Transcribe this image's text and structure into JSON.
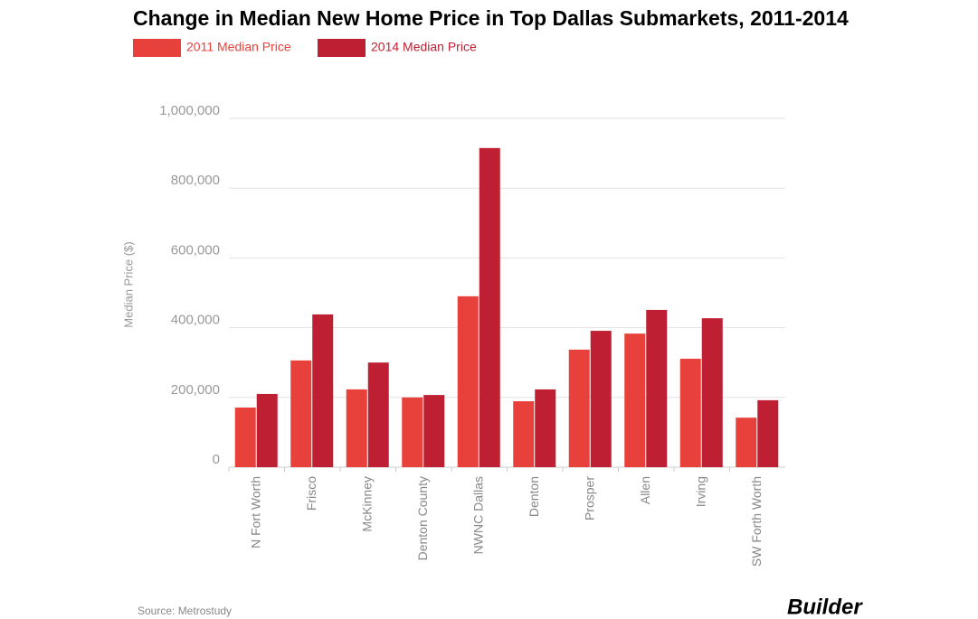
{
  "chart_data": {
    "type": "bar",
    "title": "Change in Median New Home Price in Top Dallas Submarkets, 2011-2014",
    "y_label": "Median Price ($)",
    "source": "Source: Metrostudy",
    "brand": "Builder",
    "categories": [
      "N Fort Worth",
      "Frisco",
      "McKinney",
      "Denton County",
      "NWNC Dallas",
      "Denton",
      "Prosper",
      "Allen",
      "Irving",
      "SW Forth Worth"
    ],
    "series": [
      {
        "name": "2011 Median Price",
        "color": "#e8403a",
        "values": [
          171000,
          306000,
          223000,
          200000,
          490000,
          189000,
          337000,
          383000,
          311000,
          142000
        ]
      },
      {
        "name": "2014 Median Price",
        "color": "#bf1f32",
        "values": [
          210000,
          438000,
          300000,
          207000,
          915000,
          223000,
          391000,
          451000,
          427000,
          192000
        ]
      }
    ],
    "ylim": [
      0,
      1000000
    ],
    "yticks": [
      0,
      {
        "value": 200000,
        "label": "200,000"
      },
      {
        "value": 400000,
        "label": "400,000"
      },
      {
        "value": 600000,
        "label": "600,000"
      },
      {
        "value": 800000,
        "label": "800,000"
      },
      {
        "value": 1000000,
        "label": "1,000,000"
      }
    ],
    "grid": true
  }
}
